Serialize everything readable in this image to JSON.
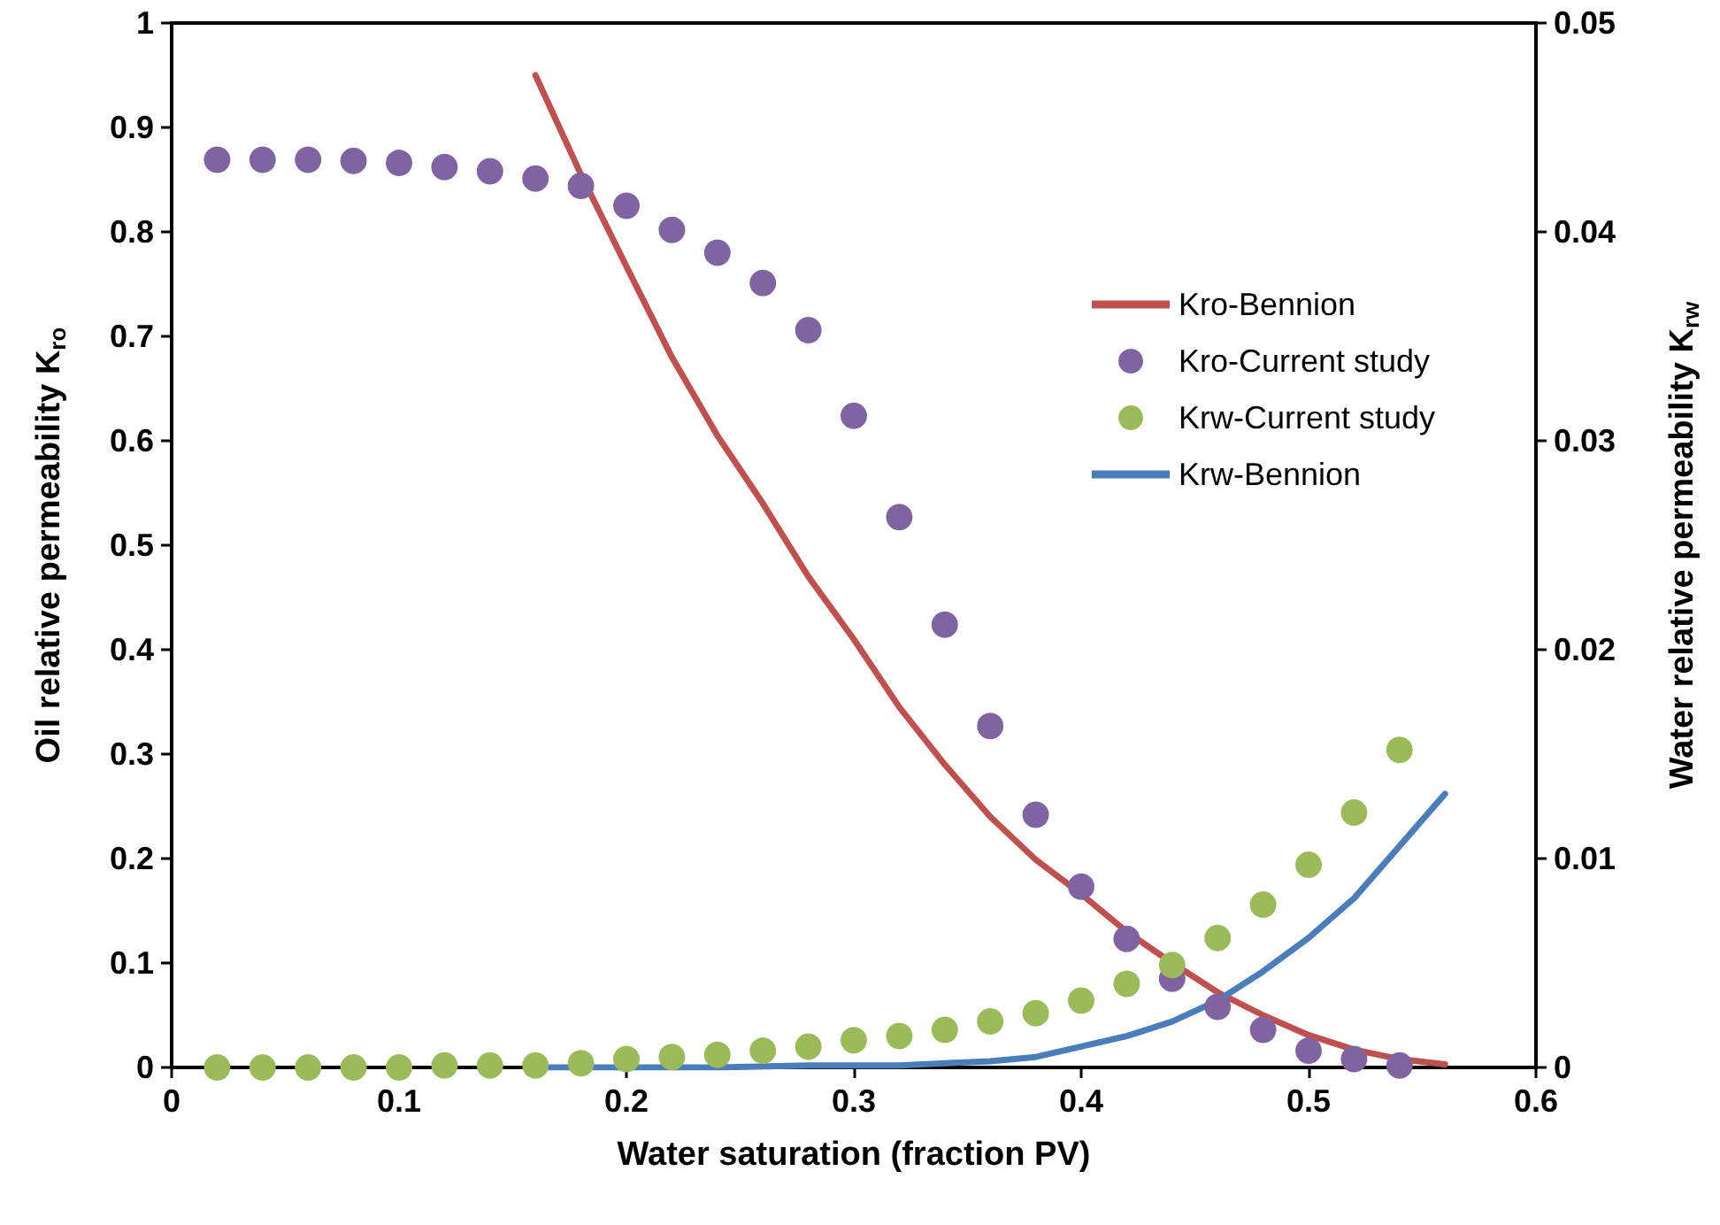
{
  "chart_data": {
    "type": "scatter",
    "xlabel": "Water saturation (fraction PV)",
    "ylabel": "Oil relative permeability K$_{ro}$",
    "y2label": "Water relative permeability K$_{rw}$",
    "xlim": [
      0,
      0.6
    ],
    "xticks": [
      0,
      0.1,
      0.2,
      0.3,
      0.4,
      0.5,
      0.6
    ],
    "ylim": [
      0,
      1
    ],
    "yticks": [
      0,
      0.1,
      0.2,
      0.3,
      0.4,
      0.5,
      0.6,
      0.7,
      0.8,
      0.9,
      1
    ],
    "y2lim": [
      0,
      0.05
    ],
    "y2ticks": [
      0,
      0.01,
      0.02,
      0.03,
      0.04,
      0.05
    ],
    "grid": false,
    "legend": "right",
    "marker": "circle",
    "series": [
      {
        "name": "Kro-Bennion",
        "type": "line",
        "marker": "none",
        "color": "#c0504d",
        "x": [
          0.16,
          0.18,
          0.2,
          0.22,
          0.24,
          0.26,
          0.28,
          0.3,
          0.32,
          0.34,
          0.36,
          0.38,
          0.4,
          0.42,
          0.44,
          0.46,
          0.48,
          0.5,
          0.52,
          0.54,
          0.56
        ],
        "values": [
          0.95,
          0.855,
          0.767,
          0.68,
          0.605,
          0.54,
          0.47,
          0.41,
          0.345,
          0.29,
          0.24,
          0.199,
          0.166,
          0.13,
          0.1,
          0.072,
          0.05,
          0.031,
          0.017,
          0.008,
          0.003
        ]
      },
      {
        "name": "Kro-Current study",
        "color": "#8064a2",
        "x": [
          0.02,
          0.04,
          0.06,
          0.08,
          0.1,
          0.12,
          0.14,
          0.16,
          0.18,
          0.2,
          0.22,
          0.24,
          0.26,
          0.28,
          0.3,
          0.32,
          0.34,
          0.36,
          0.38,
          0.4,
          0.42,
          0.44,
          0.46,
          0.48,
          0.5,
          0.52,
          0.54
        ],
        "values": [
          0.869,
          0.869,
          0.869,
          0.868,
          0.866,
          0.862,
          0.858,
          0.851,
          0.844,
          0.825,
          0.802,
          0.78,
          0.751,
          0.706,
          0.624,
          0.527,
          0.424,
          0.327,
          0.242,
          0.173,
          0.123,
          0.085,
          0.058,
          0.036,
          0.016,
          0.008,
          0.002
        ]
      },
      {
        "name": "Krw-Current study",
        "axis": "y2",
        "color": "#9bbb59",
        "x": [
          0.02,
          0.04,
          0.06,
          0.08,
          0.1,
          0.12,
          0.14,
          0.16,
          0.18,
          0.2,
          0.22,
          0.24,
          0.26,
          0.28,
          0.3,
          0.32,
          0.34,
          0.36,
          0.38,
          0.4,
          0.42,
          0.44,
          0.46,
          0.48,
          0.5,
          0.52,
          0.54
        ],
        "values": [
          0,
          0,
          0,
          0,
          0,
          0.0001,
          0.0001,
          0.0001,
          0.0002,
          0.0004,
          0.0005,
          0.0006,
          0.0008,
          0.001,
          0.0013,
          0.0015,
          0.0018,
          0.0022,
          0.0026,
          0.0032,
          0.004,
          0.0049,
          0.0062,
          0.0078,
          0.0097,
          0.0122,
          0.0152
        ]
      },
      {
        "name": "Krw-Bennion",
        "type": "line",
        "marker": "none",
        "axis": "y2",
        "color": "#4a7ebb",
        "x": [
          0.16,
          0.2,
          0.24,
          0.28,
          0.3,
          0.32,
          0.34,
          0.36,
          0.38,
          0.4,
          0.42,
          0.44,
          0.46,
          0.48,
          0.5,
          0.52,
          0.54,
          0.56
        ],
        "values": [
          0,
          0,
          0,
          0.0001,
          0.0001,
          0.0001,
          0.0002,
          0.0003,
          0.0005,
          0.001,
          0.0015,
          0.0022,
          0.0032,
          0.0046,
          0.0062,
          0.0081,
          0.0106,
          0.0131
        ]
      }
    ]
  }
}
